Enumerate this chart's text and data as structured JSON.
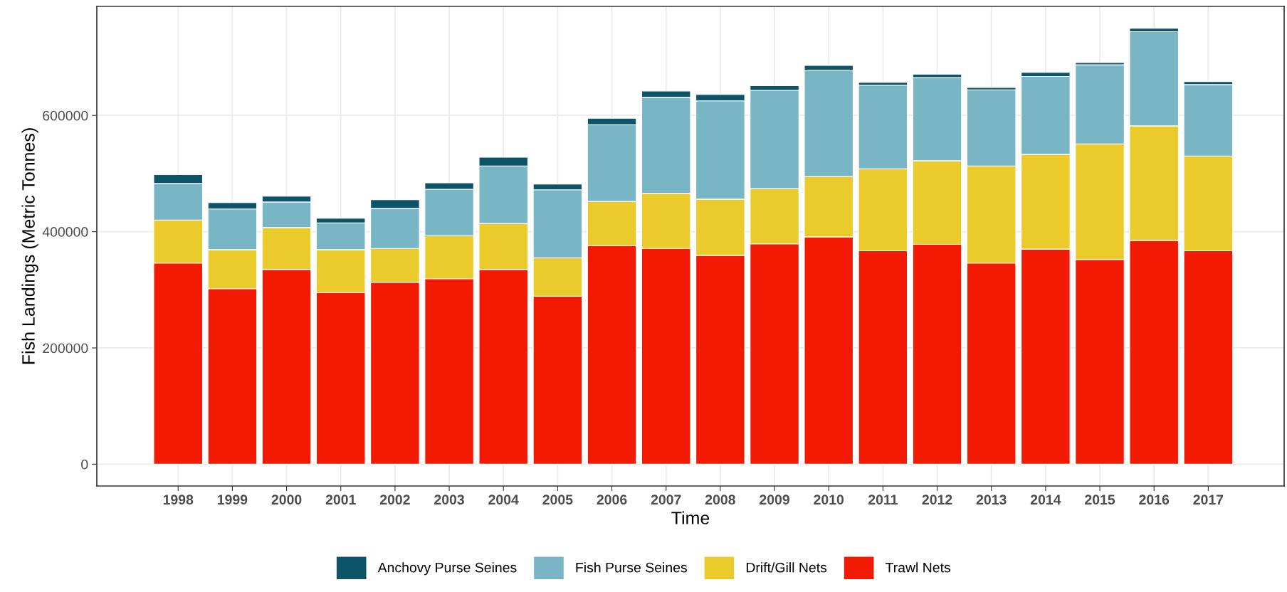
{
  "chart_data": {
    "type": "bar",
    "stacked": true,
    "xlabel": "Time",
    "ylabel": "Fish Landings (Metric Tonnes)",
    "categories": [
      "1998",
      "1999",
      "2000",
      "2001",
      "2002",
      "2003",
      "2004",
      "2005",
      "2006",
      "2007",
      "2008",
      "2009",
      "2010",
      "2011",
      "2012",
      "2013",
      "2014",
      "2015",
      "2016",
      "2017"
    ],
    "series": [
      {
        "name": "Trawl Nets",
        "color": "#f21a02",
        "values": [
          346000,
          302000,
          335000,
          295000,
          313000,
          319000,
          335000,
          289000,
          376000,
          371000,
          359000,
          379000,
          391000,
          367000,
          378000,
          346000,
          370000,
          352000,
          385000,
          367000
        ]
      },
      {
        "name": "Drift/Gill Nets",
        "color": "#eacb2b",
        "values": [
          74000,
          67000,
          72000,
          74000,
          58000,
          74000,
          79000,
          66000,
          76000,
          95000,
          97000,
          95000,
          104000,
          141000,
          144000,
          167000,
          163000,
          199000,
          197000,
          163000
        ]
      },
      {
        "name": "Fish Purse Seines",
        "color": "#79b6c5",
        "values": [
          63000,
          70000,
          44000,
          46000,
          69000,
          80000,
          99000,
          117000,
          132000,
          165000,
          169000,
          169000,
          183000,
          144000,
          143000,
          131000,
          134000,
          136000,
          162000,
          123000
        ]
      },
      {
        "name": "Anchovy Purse Seines",
        "color": "#0e5468",
        "values": [
          15000,
          11000,
          10000,
          8000,
          15000,
          11000,
          15000,
          10000,
          11000,
          11000,
          11000,
          8000,
          8000,
          5000,
          6000,
          4000,
          7000,
          4000,
          6000,
          5000
        ]
      }
    ],
    "ylim": [
      -37500,
      787500
    ],
    "yticks": [
      0,
      200000,
      400000,
      600000
    ],
    "grid": true,
    "legend": "bottom"
  }
}
